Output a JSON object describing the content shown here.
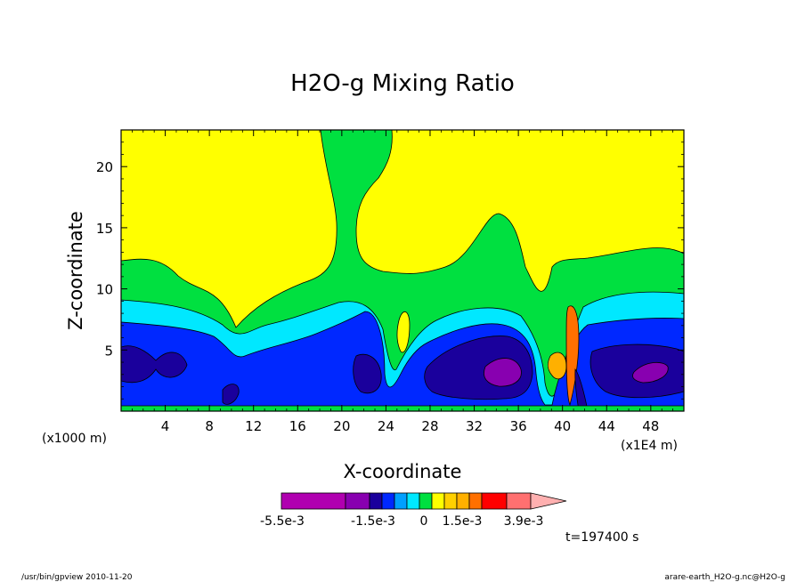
{
  "chart_data": {
    "type": "heatmap",
    "title": "H2O-g Mixing Ratio",
    "xlabel": "X-coordinate",
    "ylabel": "Z-coordinate",
    "x_unit_label": "(x1000 m)",
    "x_scale_label": "(x1E4 m)",
    "xlim": [
      0,
      51
    ],
    "ylim": [
      0,
      23
    ],
    "x_ticks": [
      4,
      8,
      12,
      16,
      20,
      24,
      28,
      32,
      36,
      40,
      44,
      48
    ],
    "y_ticks": [
      5,
      10,
      15,
      20
    ],
    "x_tick_labels": [
      "4",
      "8",
      "12",
      "16",
      "20",
      "24",
      "28",
      "32",
      "36",
      "40",
      "44",
      "48"
    ],
    "y_tick_labels": [
      "5",
      "10",
      "15",
      "20"
    ],
    "colorbar": {
      "colors": [
        "#b000b0",
        "#8800b0",
        "#1a009c",
        "#0028ff",
        "#00a0ff",
        "#00e8ff",
        "#00e040",
        "#ffff00",
        "#ffd000",
        "#ffb000",
        "#ff7000",
        "#ff0000",
        "#ff7070",
        "#ffb0b0"
      ],
      "labels": [
        "-5.5e-3",
        "-1.5e-3",
        "0",
        "1.5e-3",
        "3.9e-3"
      ]
    },
    "time_label": "t=197400 s"
  },
  "footer": {
    "left": "/usr/bin/gpview  2010-11-20",
    "right": "arare-earth_H2O-g.nc@H2O-g"
  }
}
